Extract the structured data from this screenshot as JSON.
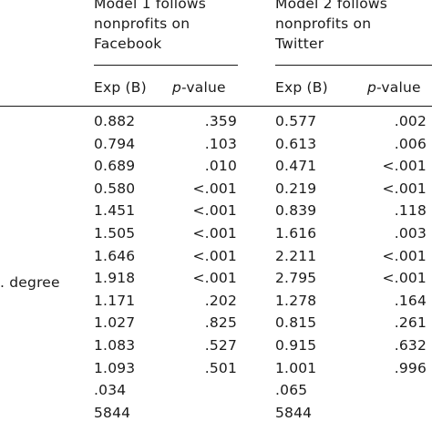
{
  "header": {
    "model1_lines": [
      "Model 1 follows",
      "nonprofits on",
      "Facebook"
    ],
    "model2_lines": [
      "Model 2 follows",
      "nonprofits on",
      "Twitter"
    ],
    "col_exp": "Exp (B)",
    "col_p_italic": "p",
    "col_p_rest": "-value"
  },
  "row_label_fragment": ". degree",
  "rows": [
    {
      "m1_exp": "0.882",
      "m1_p": ".359",
      "m2_exp": "0.577",
      "m2_p": ".002"
    },
    {
      "m1_exp": "0.794",
      "m1_p": ".103",
      "m2_exp": "0.613",
      "m2_p": ".006"
    },
    {
      "m1_exp": "0.689",
      "m1_p": ".010",
      "m2_exp": "0.471",
      "m2_p": "<.001"
    },
    {
      "m1_exp": "0.580",
      "m1_p": "<.001",
      "m2_exp": "0.219",
      "m2_p": "<.001"
    },
    {
      "m1_exp": "1.451",
      "m1_p": "<.001",
      "m2_exp": "0.839",
      "m2_p": ".118"
    },
    {
      "m1_exp": "1.505",
      "m1_p": "<.001",
      "m2_exp": "1.616",
      "m2_p": ".003"
    },
    {
      "m1_exp": "1.646",
      "m1_p": "<.001",
      "m2_exp": "2.211",
      "m2_p": "<.001"
    },
    {
      "m1_exp": "1.918",
      "m1_p": "<.001",
      "m2_exp": "2.795",
      "m2_p": "<.001"
    },
    {
      "m1_exp": "1.171",
      "m1_p": ".202",
      "m2_exp": "1.278",
      "m2_p": ".164"
    },
    {
      "m1_exp": "1.027",
      "m1_p": ".825",
      "m2_exp": "0.815",
      "m2_p": ".261"
    },
    {
      "m1_exp": "1.083",
      "m1_p": ".527",
      "m2_exp": "0.915",
      "m2_p": ".632"
    },
    {
      "m1_exp": "1.093",
      "m1_p": ".501",
      "m2_exp": "1.001",
      "m2_p": ".996"
    },
    {
      "m1_exp": ".034",
      "m1_p": "",
      "m2_exp": ".065",
      "m2_p": ""
    },
    {
      "m1_exp": "5844",
      "m1_p": "",
      "m2_exp": "5844",
      "m2_p": ""
    }
  ]
}
